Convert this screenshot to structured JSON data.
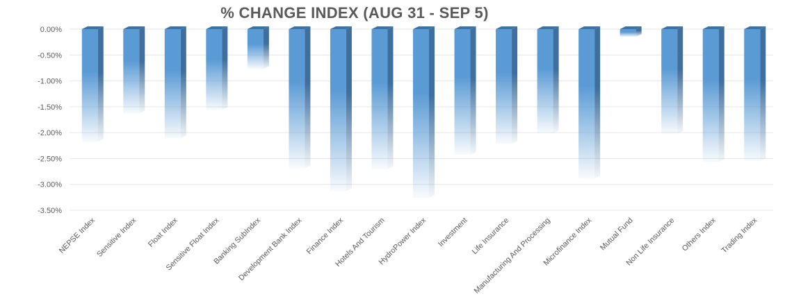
{
  "chart_data": {
    "type": "bar",
    "title": "% CHANGE INDEX (AUG 31 - SEP 5)",
    "categories": [
      "NEPSE Index",
      "Sensitive Index",
      "Float Index",
      "Sensitive Float Index",
      "Banking SubIndex",
      "Development Bank Index",
      "Finance Index",
      "Hotels And Tourism",
      "HydroPower Index",
      "Investment",
      "Life Insurance",
      "Manufacturing And Processing",
      "Microfinance Index",
      "Mutual Fund",
      "Non Life Insurance",
      "Others Index",
      "Trading Index"
    ],
    "values": [
      -2.18,
      -1.63,
      -2.11,
      -1.56,
      -0.77,
      -2.69,
      -3.13,
      -2.71,
      -3.26,
      -2.43,
      -2.22,
      -2.01,
      -2.89,
      -0.15,
      -2.02,
      -2.57,
      -2.55
    ],
    "yticks": [
      "0.00%",
      "-0.50%",
      "-1.00%",
      "-1.50%",
      "-2.00%",
      "-2.50%",
      "-3.00%",
      "-3.50%"
    ],
    "ylim": [
      -3.5,
      0
    ],
    "grid": true,
    "legend": "none",
    "colors": {
      "bar_front": "#5b9bd5",
      "bar_side": "#3f6f9e",
      "bar_top": "#41729f",
      "grid": "#e6e6e6",
      "text": "#595959"
    }
  }
}
